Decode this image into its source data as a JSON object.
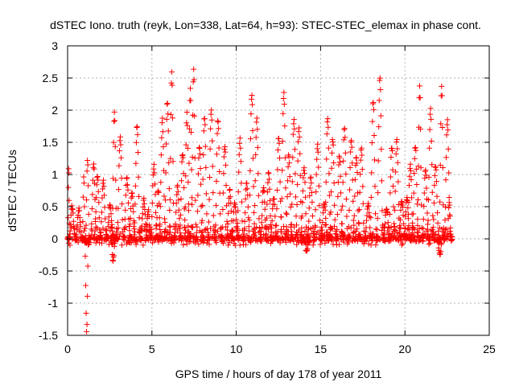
{
  "chart_data": {
    "type": "scatter",
    "title": "dSTEC Iono. truth (reyk, Lon=338, Lat=64, h=93): STEC-STEC_elemax in phase cont.",
    "xlabel": "GPS time / hours of day 178 of year 2011",
    "ylabel": "dSTEC  / TECUs",
    "xlim": [
      0,
      25
    ],
    "ylim": [
      -1.5,
      3
    ],
    "xticks": [
      0,
      5,
      10,
      15,
      20,
      25
    ],
    "yticks": [
      -1.5,
      -1,
      -0.5,
      0,
      0.5,
      1,
      1.5,
      2,
      2.5,
      3
    ],
    "grid": true,
    "marker": "plus",
    "color": "#ff0000",
    "arcs": [
      {
        "t0": 0.0,
        "t1": 0.15,
        "peak": 1.1
      },
      {
        "t0": 0.05,
        "t1": 0.55,
        "peak": 0.5
      },
      {
        "t0": 0.45,
        "t1": 0.95,
        "peak": 0.45
      },
      {
        "t0": 0.85,
        "t1": 1.1,
        "peak": 0.95
      },
      {
        "t0": 1.0,
        "t1": 1.3,
        "peak": -1.45
      },
      {
        "t0": 1.05,
        "t1": 1.35,
        "peak": 1.25
      },
      {
        "t0": 1.35,
        "t1": 1.8,
        "peak": 1.15
      },
      {
        "t0": 1.55,
        "t1": 2.05,
        "peak": 0.95
      },
      {
        "t0": 1.9,
        "t1": 2.4,
        "peak": 0.9
      },
      {
        "t0": 2.3,
        "t1": 2.8,
        "peak": 0.55
      },
      {
        "t0": 2.55,
        "t1": 2.9,
        "peak": -0.35
      },
      {
        "t0": 2.6,
        "t1": 3.0,
        "peak": 2.0
      },
      {
        "t0": 2.9,
        "t1": 3.4,
        "peak": 1.6
      },
      {
        "t0": 3.3,
        "t1": 3.8,
        "peak": 0.95
      },
      {
        "t0": 3.6,
        "t1": 4.1,
        "peak": 0.7
      },
      {
        "t0": 3.9,
        "t1": 4.4,
        "peak": 1.75
      },
      {
        "t0": 4.3,
        "t1": 4.8,
        "peak": 0.6
      },
      {
        "t0": 4.6,
        "t1": 5.0,
        "peak": 0.45
      },
      {
        "t0": 4.9,
        "t1": 5.4,
        "peak": 1.15
      },
      {
        "t0": 5.2,
        "t1": 5.6,
        "peak": 0.75
      },
      {
        "t0": 5.4,
        "t1": 5.9,
        "peak": 1.85
      },
      {
        "t0": 5.7,
        "t1": 6.2,
        "peak": 2.15
      },
      {
        "t0": 6.0,
        "t1": 6.4,
        "peak": 2.6
      },
      {
        "t0": 6.3,
        "t1": 6.8,
        "peak": 0.8
      },
      {
        "t0": 6.6,
        "t1": 7.1,
        "peak": 1.35
      },
      {
        "t0": 6.9,
        "t1": 7.3,
        "peak": 1.95
      },
      {
        "t0": 7.1,
        "t1": 7.5,
        "peak": 2.35
      },
      {
        "t0": 7.3,
        "t1": 7.7,
        "peak": 2.65
      },
      {
        "t0": 7.6,
        "t1": 8.1,
        "peak": 1.45
      },
      {
        "t0": 7.9,
        "t1": 8.4,
        "peak": 1.9
      },
      {
        "t0": 8.3,
        "t1": 8.8,
        "peak": 2.0
      },
      {
        "t0": 8.7,
        "t1": 9.2,
        "peak": 1.85
      },
      {
        "t0": 9.1,
        "t1": 9.6,
        "peak": 1.45
      },
      {
        "t0": 9.4,
        "t1": 9.9,
        "peak": 0.75
      },
      {
        "t0": 9.7,
        "t1": 10.2,
        "peak": 0.55
      },
      {
        "t0": 10.0,
        "t1": 10.5,
        "peak": 1.55
      },
      {
        "t0": 10.4,
        "t1": 10.9,
        "peak": 0.85
      },
      {
        "t0": 10.7,
        "t1": 11.2,
        "peak": 2.25
      },
      {
        "t0": 11.0,
        "t1": 11.5,
        "peak": 1.85
      },
      {
        "t0": 11.4,
        "t1": 11.9,
        "peak": 0.8
      },
      {
        "t0": 11.7,
        "t1": 12.2,
        "peak": 1.05
      },
      {
        "t0": 12.0,
        "t1": 12.5,
        "peak": 0.65
      },
      {
        "t0": 12.3,
        "t1": 12.8,
        "peak": 1.6
      },
      {
        "t0": 12.6,
        "t1": 13.1,
        "peak": 2.25
      },
      {
        "t0": 12.9,
        "t1": 13.4,
        "peak": 1.3
      },
      {
        "t0": 13.2,
        "t1": 13.7,
        "peak": 1.85
      },
      {
        "t0": 13.5,
        "t1": 14.0,
        "peak": 1.7
      },
      {
        "t0": 13.8,
        "t1": 14.3,
        "peak": 1.1
      },
      {
        "t0": 14.0,
        "t1": 14.4,
        "peak": -0.2
      },
      {
        "t0": 14.2,
        "t1": 14.7,
        "peak": 0.95
      },
      {
        "t0": 14.6,
        "t1": 15.1,
        "peak": 1.45
      },
      {
        "t0": 15.0,
        "t1": 15.5,
        "peak": 0.55
      },
      {
        "t0": 15.2,
        "t1": 15.7,
        "peak": 1.85
      },
      {
        "t0": 15.5,
        "t1": 16.0,
        "peak": 1.55
      },
      {
        "t0": 15.9,
        "t1": 16.4,
        "peak": 1.3
      },
      {
        "t0": 16.2,
        "t1": 16.7,
        "peak": 1.75
      },
      {
        "t0": 16.6,
        "t1": 17.1,
        "peak": 1.55
      },
      {
        "t0": 16.9,
        "t1": 17.4,
        "peak": 1.3
      },
      {
        "t0": 17.2,
        "t1": 17.7,
        "peak": 1.45
      },
      {
        "t0": 17.6,
        "t1": 18.1,
        "peak": 0.55
      },
      {
        "t0": 17.9,
        "t1": 18.4,
        "peak": 2.15
      },
      {
        "t0": 18.3,
        "t1": 18.8,
        "peak": 2.5
      },
      {
        "t0": 18.7,
        "t1": 19.2,
        "peak": 0.5
      },
      {
        "t0": 19.0,
        "t1": 19.5,
        "peak": 1.45
      },
      {
        "t0": 19.3,
        "t1": 19.8,
        "peak": 1.55
      },
      {
        "t0": 19.6,
        "t1": 20.1,
        "peak": 0.6
      },
      {
        "t0": 19.9,
        "t1": 20.4,
        "peak": 0.65
      },
      {
        "t0": 20.1,
        "t1": 20.6,
        "peak": 1.15
      },
      {
        "t0": 20.4,
        "t1": 20.9,
        "peak": 1.45
      },
      {
        "t0": 20.7,
        "t1": 21.1,
        "peak": 2.35
      },
      {
        "t0": 21.0,
        "t1": 21.5,
        "peak": 1.05
      },
      {
        "t0": 21.3,
        "t1": 21.8,
        "peak": 2.0
      },
      {
        "t0": 21.6,
        "t1": 22.1,
        "peak": 1.15
      },
      {
        "t0": 21.9,
        "t1": 22.3,
        "peak": -0.25
      },
      {
        "t0": 22.0,
        "t1": 22.4,
        "peak": 2.4
      },
      {
        "t0": 22.3,
        "t1": 22.8,
        "peak": 1.85
      },
      {
        "t0": 22.5,
        "t1": 22.8,
        "peak": 0.6
      }
    ]
  }
}
